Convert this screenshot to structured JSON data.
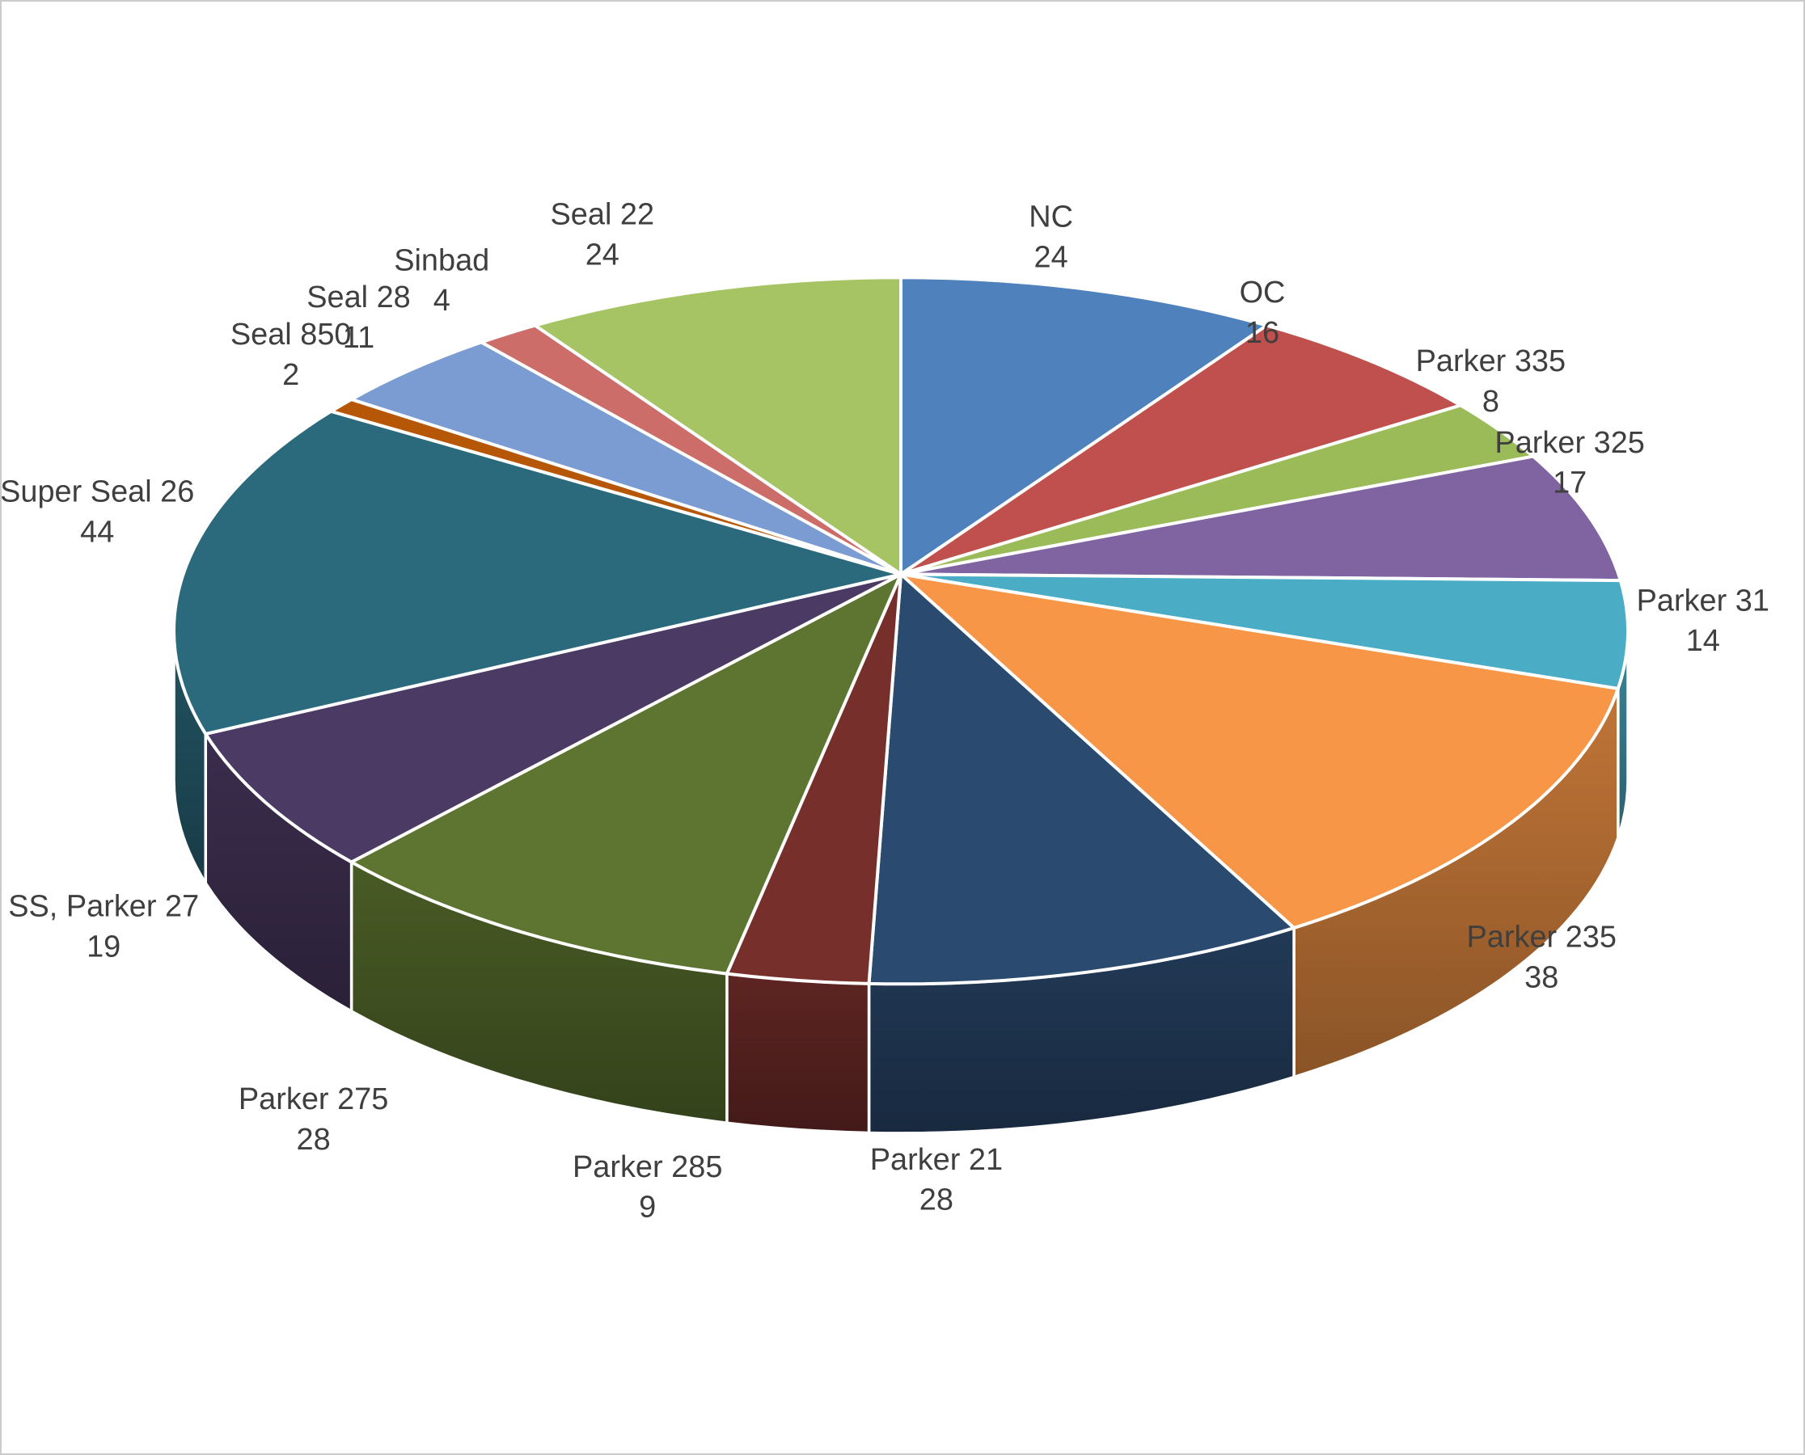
{
  "chart_data": {
    "type": "pie",
    "style": "3d-exploded-none",
    "title": "",
    "legend_position": "none",
    "data_label_format": "category-newline-value",
    "background_color": "#FFFFFF",
    "frame_border_color": "#CBCBCB",
    "label_text_color": "#3F3F3F",
    "slice_border_color": "#FFFFFF",
    "direction": "clockwise",
    "start_angle_deg": 0,
    "total": 286,
    "categories": [
      "NC",
      "OC",
      "Parker 335",
      "Parker 325",
      "Parker 31",
      "Parker 235",
      "Parker 21",
      "Parker 285",
      "Parker 275",
      "SS, Parker 27",
      "Super Seal 26",
      "Seal 850",
      "Seal 28",
      "Sinbad",
      "Seal 22"
    ],
    "values": [
      24,
      16,
      8,
      17,
      14,
      38,
      28,
      9,
      28,
      19,
      44,
      2,
      11,
      4,
      24
    ],
    "colors": [
      "#4F81BD",
      "#C0504D",
      "#9BBB59",
      "#8064A2",
      "#4BACC6",
      "#F79646",
      "#2B4A70",
      "#772F2B",
      "#5D7530",
      "#4B3A63",
      "#2B6A7D",
      "#B65708",
      "#7B9CD2",
      "#CC6D69",
      "#A6C464"
    ]
  }
}
